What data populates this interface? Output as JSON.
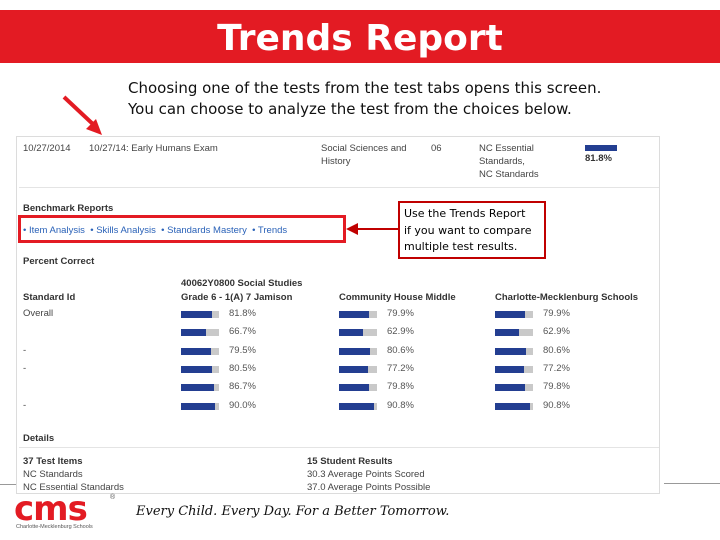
{
  "slide": {
    "title": "Trends Report",
    "intro_line1": "Choosing one of the tests from the test tabs opens this screen.",
    "intro_line2": "You can choose to analyze the test from the choices below.",
    "callout_line1": "Use the Trends Report",
    "callout_line2": "if you want to compare",
    "callout_line3": "multiple test results.",
    "accent_color": "#e31b23"
  },
  "screenshot": {
    "top_row": {
      "date1": "10/27/2014",
      "date2_exam": "10/27/14: Early Humans Exam",
      "subject_line1": "Social Sciences and",
      "subject_line2": "History",
      "grade": "06",
      "standards_line1": "NC Essential",
      "standards_line2": "Standards,",
      "standards_line3": "NC Standards",
      "score": "81.8%"
    },
    "benchmark_heading": "Benchmark Reports",
    "links": [
      "Item Analysis",
      "Skills Analysis",
      "Standards Mastery",
      "Trends"
    ],
    "percent_heading": "Percent Correct",
    "table": {
      "col_standard": "Standard Id",
      "col_class_line1": "40062Y0800 Social Studies",
      "col_class_line2": "Grade 6 - 1(A) 7 Jamison",
      "col_school": "Community House Middle",
      "col_district": "Charlotte-Mecklenburg Schools",
      "rows": [
        {
          "id": "Overall",
          "c1": "81.8%",
          "v1": 81.8,
          "c2": "79.9%",
          "v2": 79.9,
          "c3": "79.9%",
          "v3": 79.9
        },
        {
          "id": "",
          "c1": "66.7%",
          "v1": 66.7,
          "c2": "62.9%",
          "v2": 62.9,
          "c3": "62.9%",
          "v3": 62.9
        },
        {
          "id": "-",
          "c1": "79.5%",
          "v1": 79.5,
          "c2": "80.6%",
          "v2": 80.6,
          "c3": "80.6%",
          "v3": 80.6
        },
        {
          "id": "-",
          "c1": "80.5%",
          "v1": 80.5,
          "c2": "77.2%",
          "v2": 77.2,
          "c3": "77.2%",
          "v3": 77.2
        },
        {
          "id": "",
          "c1": "86.7%",
          "v1": 86.7,
          "c2": "79.8%",
          "v2": 79.8,
          "c3": "79.8%",
          "v3": 79.8
        },
        {
          "id": "-",
          "c1": "90.0%",
          "v1": 90.0,
          "c2": "90.8%",
          "v2": 90.8,
          "c3": "90.8%",
          "v3": 90.8
        }
      ]
    },
    "details": {
      "heading": "Details",
      "test_items": "37 Test Items",
      "nc_standards": "NC Standards",
      "nc_essential": "NC Essential Standards",
      "student_results": "15 Student Results",
      "avg_scored": "30.3 Average Points Scored",
      "avg_possible": "37.0 Average Points Possible"
    }
  },
  "footer": {
    "logo": "cms",
    "logo_sub": "Charlotte-Mecklenburg Schools",
    "logo_reg": "®",
    "slogan": "Every Child. Every Day. For a Better Tomorrow."
  }
}
